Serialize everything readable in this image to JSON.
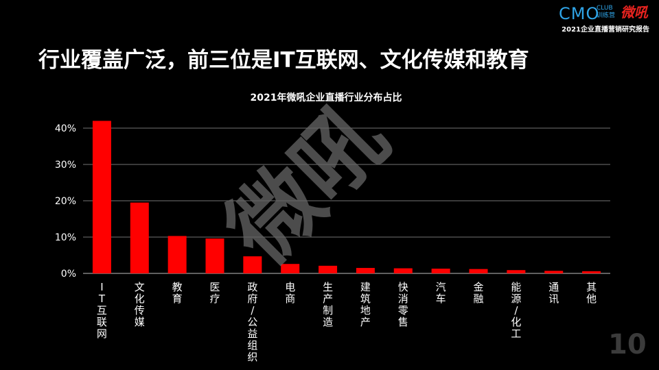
{
  "brand": {
    "cmo": "CMO",
    "club": "CLUB",
    "club_sub": "训练营",
    "weihou": "微吼",
    "report_tag": "2021企业直播营销研究报告"
  },
  "slide": {
    "title": "行业覆盖广泛，前三位是IT互联网、文化传媒和教育",
    "page_number": "10",
    "watermark": "微吼"
  },
  "colors": {
    "bar": "#ff0000",
    "grid": "#9a9a9a",
    "background": "#000000"
  },
  "chart_data": {
    "type": "bar",
    "title": "2021年微吼企业直播行业分布占比",
    "categories": [
      "IT互联网",
      "文化传媒",
      "教育",
      "医疗",
      "政府/公益组织",
      "电商",
      "生产制造",
      "建筑地产",
      "快消零售",
      "汽车",
      "金融",
      "能源/化工",
      "通讯",
      "其他"
    ],
    "values": [
      42.0,
      19.5,
      10.3,
      9.6,
      4.7,
      2.6,
      2.1,
      1.5,
      1.4,
      1.3,
      1.2,
      0.9,
      0.7,
      0.6
    ],
    "value_unit": "%",
    "yticks": [
      "0%",
      "10%",
      "20%",
      "30%",
      "40%"
    ],
    "ylim": [
      0,
      40
    ],
    "grid": true,
    "xlabel": "",
    "ylabel": ""
  }
}
